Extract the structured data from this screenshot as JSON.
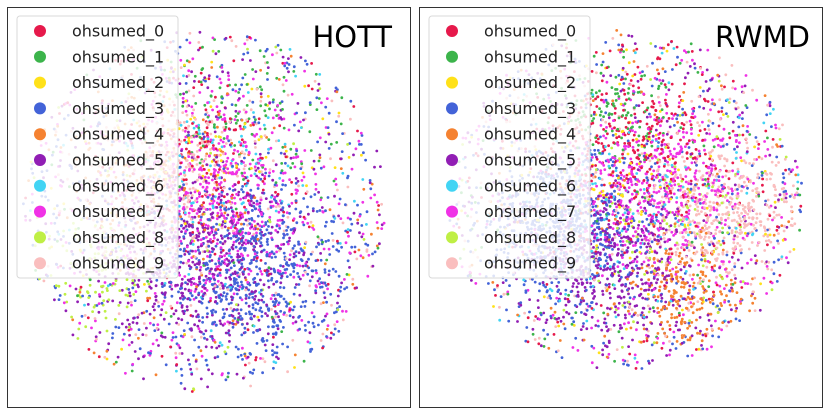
{
  "chart_data": [
    {
      "type": "scatter",
      "title": "HOTT",
      "legend_placement": "top-left",
      "grid": false,
      "categories": [
        "ohsumed_0",
        "ohsumed_1",
        "ohsumed_2",
        "ohsumed_3",
        "ohsumed_4",
        "ohsumed_5",
        "ohsumed_6",
        "ohsumed_7",
        "ohsumed_8",
        "ohsumed_9"
      ],
      "colors": [
        "#e6194b",
        "#3cb44b",
        "#ffe119",
        "#4363d8",
        "#f58231",
        "#911eb4",
        "#42d4f4",
        "#f032e6",
        "#bfef45",
        "#fabebe"
      ],
      "point_counts": [
        260,
        160,
        110,
        900,
        260,
        800,
        140,
        700,
        150,
        420
      ]
    },
    {
      "type": "scatter",
      "title": "RWMD",
      "legend_placement": "top-left",
      "grid": false,
      "categories": [
        "ohsumed_0",
        "ohsumed_1",
        "ohsumed_2",
        "ohsumed_3",
        "ohsumed_4",
        "ohsumed_5",
        "ohsumed_6",
        "ohsumed_7",
        "ohsumed_8",
        "ohsumed_9"
      ],
      "colors": [
        "#e6194b",
        "#3cb44b",
        "#ffe119",
        "#4363d8",
        "#f58231",
        "#911eb4",
        "#42d4f4",
        "#f032e6",
        "#bfef45",
        "#fabebe"
      ],
      "point_counts": [
        450,
        200,
        130,
        1000,
        330,
        700,
        160,
        650,
        130,
        650
      ]
    }
  ]
}
